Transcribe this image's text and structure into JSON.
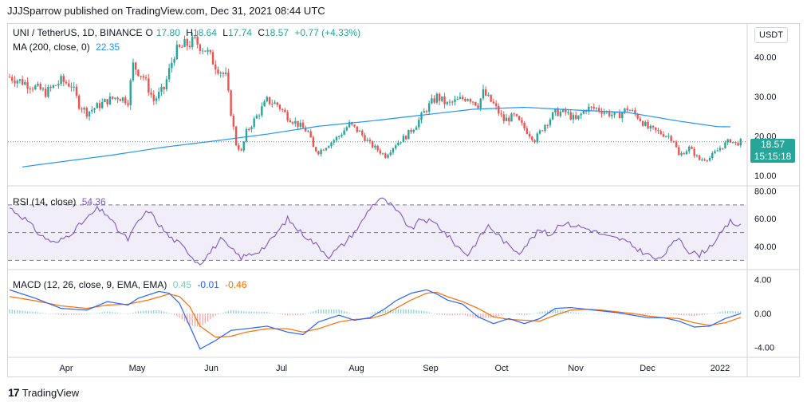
{
  "header": {
    "publisher": "JJJSparrow published on TradingView.com, Dec 31, 2021 08:44 UTC"
  },
  "main_legend": {
    "symbol": "UNI / TetherUS, 1D, BINANCE",
    "o_label": "O",
    "o_value": "17.80",
    "h_label": "H",
    "h_value": "18.64",
    "l_label": "L",
    "l_value": "17.74",
    "c_label": "C",
    "c_value": "18.57",
    "change": "+0.77 (+4.33%)",
    "ma_label": "MA (200, close, 0)",
    "ma_value": "22.35"
  },
  "rsi_legend": {
    "label": "RSI (14, close)",
    "value": "54.36"
  },
  "macd_legend": {
    "label": "MACD (12, 26, close, 9, EMA, EMA)",
    "hist": "0.45",
    "macd": "-0.01",
    "signal": "-0.46"
  },
  "currency_button": "USDT",
  "price_tag": {
    "price": "18.57",
    "countdown": "15:15:18"
  },
  "footer": {
    "logo": "17",
    "brand": "TradingView"
  },
  "colors": {
    "up": "#26a69a",
    "down": "#ef5350",
    "ma": "#2196f3",
    "rsi": "#7e57c2",
    "macd": "#2962ff",
    "signal": "#ff6d00",
    "hist_up": "#26a69a",
    "hist_down": "#ef5350",
    "rsi_band": "#ede7f6"
  },
  "chart_data": [
    {
      "type": "candlestick",
      "title": "UNI / TetherUS, 1D, BINANCE",
      "y_ticks": [
        "40.00",
        "30.00",
        "20.00",
        "10.00"
      ],
      "x_labels": [
        "Apr",
        "May",
        "Jun",
        "Jul",
        "Aug",
        "Sep",
        "Oct",
        "Nov",
        "Dec",
        "2022"
      ],
      "ylim": [
        8,
        46
      ],
      "close_anchors": [
        [
          0,
          35
        ],
        [
          8,
          33
        ],
        [
          14,
          31
        ],
        [
          20,
          34
        ],
        [
          24,
          33
        ],
        [
          27,
          28
        ],
        [
          30,
          26
        ],
        [
          34,
          27.5
        ],
        [
          38,
          29
        ],
        [
          42,
          30
        ],
        [
          46,
          29
        ],
        [
          48,
          38
        ],
        [
          52,
          35
        ],
        [
          56,
          29
        ],
        [
          60,
          32
        ],
        [
          64,
          41
        ],
        [
          68,
          43
        ],
        [
          72,
          44
        ],
        [
          76,
          42
        ],
        [
          80,
          38
        ],
        [
          84,
          35
        ],
        [
          86,
          26
        ],
        [
          88,
          18
        ],
        [
          90,
          16
        ],
        [
          92,
          21
        ],
        [
          96,
          25
        ],
        [
          100,
          29
        ],
        [
          104,
          28
        ],
        [
          108,
          25
        ],
        [
          112,
          23
        ],
        [
          116,
          21
        ],
        [
          118,
          17
        ],
        [
          120,
          16
        ],
        [
          124,
          18
        ],
        [
          128,
          20
        ],
        [
          132,
          23
        ],
        [
          136,
          21
        ],
        [
          140,
          18
        ],
        [
          144,
          16
        ],
        [
          146,
          15
        ],
        [
          150,
          18
        ],
        [
          154,
          20
        ],
        [
          158,
          23
        ],
        [
          162,
          27
        ],
        [
          166,
          30
        ],
        [
          170,
          28
        ],
        [
          174,
          29
        ],
        [
          178,
          30
        ],
        [
          182,
          28
        ],
        [
          184,
          31
        ],
        [
          188,
          28
        ],
        [
          192,
          24
        ],
        [
          196,
          25
        ],
        [
          200,
          22
        ],
        [
          204,
          19
        ],
        [
          208,
          23
        ],
        [
          212,
          26
        ],
        [
          216,
          26
        ],
        [
          220,
          24
        ],
        [
          224,
          27
        ],
        [
          228,
          27
        ],
        [
          232,
          26
        ],
        [
          236,
          25
        ],
        [
          240,
          27
        ],
        [
          244,
          25
        ],
        [
          248,
          22
        ],
        [
          252,
          21
        ],
        [
          256,
          20
        ],
        [
          258,
          19
        ],
        [
          260,
          15
        ],
        [
          264,
          17
        ],
        [
          268,
          14
        ],
        [
          272,
          14.5
        ],
        [
          276,
          17
        ],
        [
          280,
          19
        ],
        [
          282,
          18
        ],
        [
          284,
          18.57
        ]
      ],
      "ma_values": [
        [
          5,
          12.2
        ],
        [
          20,
          13.5
        ],
        [
          40,
          15.2
        ],
        [
          60,
          17.2
        ],
        [
          80,
          18.8
        ],
        [
          100,
          20.5
        ],
        [
          120,
          22.5
        ],
        [
          140,
          23.8
        ],
        [
          160,
          25.3
        ],
        [
          180,
          26.8
        ],
        [
          200,
          27.3
        ],
        [
          220,
          26.6
        ],
        [
          240,
          26
        ],
        [
          260,
          23.8
        ],
        [
          275,
          22.4
        ],
        [
          280,
          22.35
        ]
      ],
      "current_price": 18.57
    },
    {
      "type": "line",
      "title": "RSI (14, close)",
      "y_ticks": [
        "80.00",
        "60.00",
        "40.00"
      ],
      "ylim": [
        25,
        82
      ],
      "bands": [
        70,
        50,
        30
      ],
      "values": [
        [
          0,
          68
        ],
        [
          6,
          60
        ],
        [
          12,
          48
        ],
        [
          18,
          42
        ],
        [
          24,
          50
        ],
        [
          30,
          60
        ],
        [
          34,
          67
        ],
        [
          38,
          63
        ],
        [
          42,
          52
        ],
        [
          46,
          45
        ],
        [
          50,
          58
        ],
        [
          54,
          66
        ],
        [
          58,
          56
        ],
        [
          62,
          47
        ],
        [
          66,
          42
        ],
        [
          70,
          35
        ],
        [
          72,
          30
        ],
        [
          74,
          28
        ],
        [
          78,
          36
        ],
        [
          82,
          45
        ],
        [
          86,
          38
        ],
        [
          90,
          32
        ],
        [
          96,
          36
        ],
        [
          100,
          41
        ],
        [
          104,
          50
        ],
        [
          108,
          60
        ],
        [
          112,
          52
        ],
        [
          116,
          46
        ],
        [
          120,
          40
        ],
        [
          124,
          33
        ],
        [
          130,
          42
        ],
        [
          136,
          55
        ],
        [
          140,
          68
        ],
        [
          144,
          75
        ],
        [
          148,
          70
        ],
        [
          152,
          62
        ],
        [
          156,
          52
        ],
        [
          160,
          60
        ],
        [
          166,
          56
        ],
        [
          170,
          48
        ],
        [
          174,
          40
        ],
        [
          178,
          34
        ],
        [
          182,
          45
        ],
        [
          186,
          55
        ],
        [
          190,
          48
        ],
        [
          194,
          40
        ],
        [
          198,
          36
        ],
        [
          202,
          44
        ],
        [
          206,
          52
        ],
        [
          210,
          48
        ],
        [
          214,
          57
        ],
        [
          220,
          55
        ],
        [
          226,
          52
        ],
        [
          232,
          47
        ],
        [
          238,
          45
        ],
        [
          244,
          38
        ],
        [
          248,
          34
        ],
        [
          252,
          30
        ],
        [
          256,
          38
        ],
        [
          260,
          47
        ],
        [
          264,
          36
        ],
        [
          268,
          34
        ],
        [
          272,
          40
        ],
        [
          276,
          48
        ],
        [
          280,
          58
        ],
        [
          284,
          54.36
        ]
      ]
    },
    {
      "type": "line",
      "title": "MACD (12, 26, close, 9, EMA, EMA)",
      "y_ticks": [
        "4.00",
        "0.00",
        "-4.00"
      ],
      "ylim": [
        -5,
        5
      ],
      "macd": [
        [
          0,
          2.8
        ],
        [
          10,
          1.8
        ],
        [
          20,
          0.6
        ],
        [
          30,
          0.4
        ],
        [
          38,
          1.4
        ],
        [
          46,
          1.0
        ],
        [
          50,
          1.8
        ],
        [
          58,
          2.6
        ],
        [
          62,
          2.4
        ],
        [
          66,
          1.2
        ],
        [
          70,
          -1.5
        ],
        [
          74,
          -4.2
        ],
        [
          80,
          -3.2
        ],
        [
          86,
          -2.0
        ],
        [
          92,
          -1.8
        ],
        [
          100,
          -1.5
        ],
        [
          108,
          -2.2
        ],
        [
          114,
          -2.5
        ],
        [
          120,
          -1.0
        ],
        [
          128,
          -0.2
        ],
        [
          134,
          -0.8
        ],
        [
          140,
          -0.5
        ],
        [
          146,
          0.6
        ],
        [
          150,
          1.5
        ],
        [
          156,
          2.4
        ],
        [
          162,
          2.8
        ],
        [
          166,
          2.3
        ],
        [
          170,
          1.6
        ],
        [
          176,
          1.1
        ],
        [
          182,
          -0.4
        ],
        [
          188,
          -1.2
        ],
        [
          194,
          -0.6
        ],
        [
          200,
          -1.2
        ],
        [
          206,
          -0.6
        ],
        [
          212,
          0.6
        ],
        [
          218,
          0.7
        ],
        [
          224,
          0.5
        ],
        [
          230,
          0.3
        ],
        [
          236,
          0.1
        ],
        [
          242,
          -0.2
        ],
        [
          248,
          -0.5
        ],
        [
          254,
          -0.5
        ],
        [
          260,
          -0.9
        ],
        [
          266,
          -1.6
        ],
        [
          272,
          -1.5
        ],
        [
          278,
          -0.6
        ],
        [
          284,
          -0.01
        ]
      ],
      "signal": [
        [
          0,
          2.0
        ],
        [
          10,
          1.5
        ],
        [
          20,
          0.9
        ],
        [
          30,
          0.6
        ],
        [
          38,
          1.0
        ],
        [
          46,
          1.1
        ],
        [
          54,
          1.6
        ],
        [
          62,
          2.3
        ],
        [
          66,
          2.0
        ],
        [
          70,
          0.8
        ],
        [
          74,
          -1.5
        ],
        [
          80,
          -2.8
        ],
        [
          86,
          -2.7
        ],
        [
          92,
          -2.2
        ],
        [
          100,
          -1.8
        ],
        [
          108,
          -1.8
        ],
        [
          114,
          -2.2
        ],
        [
          120,
          -1.8
        ],
        [
          128,
          -1.0
        ],
        [
          134,
          -0.7
        ],
        [
          140,
          -0.6
        ],
        [
          146,
          -0.1
        ],
        [
          150,
          0.6
        ],
        [
          156,
          1.6
        ],
        [
          162,
          2.4
        ],
        [
          166,
          2.5
        ],
        [
          170,
          2.0
        ],
        [
          176,
          1.4
        ],
        [
          182,
          0.6
        ],
        [
          188,
          -0.4
        ],
        [
          194,
          -0.7
        ],
        [
          200,
          -0.8
        ],
        [
          206,
          -0.9
        ],
        [
          212,
          -0.2
        ],
        [
          218,
          0.4
        ],
        [
          224,
          0.5
        ],
        [
          230,
          0.4
        ],
        [
          236,
          0.2
        ],
        [
          242,
          0.0
        ],
        [
          248,
          -0.3
        ],
        [
          254,
          -0.5
        ],
        [
          260,
          -0.6
        ],
        [
          266,
          -1.1
        ],
        [
          272,
          -1.4
        ],
        [
          278,
          -1.1
        ],
        [
          284,
          -0.46
        ]
      ]
    }
  ]
}
